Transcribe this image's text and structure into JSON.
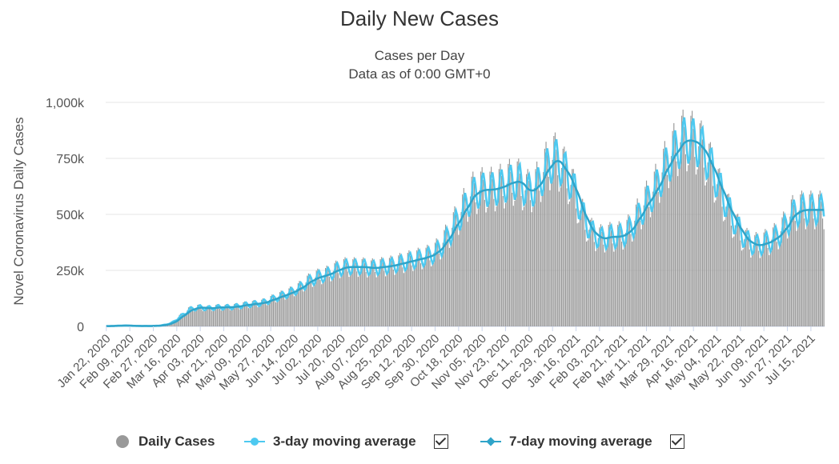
{
  "chart_data": {
    "type": "bar",
    "title": "Daily New Cases",
    "subtitle_lines": [
      "Cases per Day",
      "Data as of 0:00 GMT+0"
    ],
    "ylabel": "Novel Coronavirus Daily Cases",
    "xlabel": "",
    "ylim": [
      0,
      1000000
    ],
    "y_ticks": [
      "0",
      "250k",
      "500k",
      "750k",
      "1,000k"
    ],
    "y_tick_values": [
      0,
      250000,
      500000,
      750000,
      1000000
    ],
    "x_ticks": [
      "Jan 22, 2020",
      "Feb 09, 2020",
      "Feb 27, 2020",
      "Mar 16, 2020",
      "Apr 03, 2020",
      "Apr 21, 2020",
      "May 09, 2020",
      "May 27, 2020",
      "Jun 14, 2020",
      "Jul 02, 2020",
      "Jul 20, 2020",
      "Aug 07, 2020",
      "Aug 25, 2020",
      "Sep 12, 2020",
      "Sep 30, 2020",
      "Oct 18, 2020",
      "Nov 05, 2020",
      "Nov 23, 2020",
      "Dec 11, 2020",
      "Dec 29, 2020",
      "Jan 16, 2021",
      "Feb 03, 2021",
      "Feb 21, 2021",
      "Mar 11, 2021",
      "Mar 29, 2021",
      "Apr 16, 2021",
      "May 04, 2021",
      "May 22, 2021",
      "Jun 09, 2021",
      "Jun 27, 2021",
      "Jul 15, 2021"
    ],
    "grid": true,
    "legend_position": "bottom",
    "x_start": "2020-01-22",
    "x_end": "2021-07-25",
    "series": [
      {
        "name": "Daily Cases",
        "type": "bar",
        "color": "#999999",
        "values_weekly": [
          1000,
          3000,
          4000,
          2000,
          2000,
          2000,
          5000,
          15000,
          45000,
          75000,
          85000,
          80000,
          85000,
          85000,
          88000,
          95000,
          100000,
          105000,
          120000,
          135000,
          150000,
          170000,
          200000,
          220000,
          230000,
          250000,
          265000,
          265000,
          265000,
          260000,
          265000,
          270000,
          280000,
          290000,
          300000,
          310000,
          330000,
          380000,
          450000,
          520000,
          590000,
          610000,
          610000,
          620000,
          640000,
          650000,
          600000,
          620000,
          700000,
          750000,
          700000,
          620000,
          500000,
          420000,
          390000,
          400000,
          400000,
          420000,
          480000,
          550000,
          610000,
          700000,
          770000,
          830000,
          830000,
          800000,
          720000,
          620000,
          520000,
          440000,
          380000,
          360000,
          370000,
          390000,
          430000,
          500000,
          520000
        ]
      },
      {
        "name": "3-day moving average",
        "type": "line",
        "color": "#4DC9F0",
        "values_weekly": [
          1000,
          3000,
          4000,
          2000,
          2000,
          2000,
          5000,
          15000,
          45000,
          75000,
          85000,
          80000,
          85000,
          85000,
          88000,
          95000,
          100000,
          105000,
          120000,
          135000,
          150000,
          170000,
          200000,
          220000,
          230000,
          250000,
          265000,
          265000,
          265000,
          260000,
          265000,
          270000,
          280000,
          290000,
          300000,
          310000,
          330000,
          380000,
          450000,
          520000,
          590000,
          610000,
          610000,
          620000,
          640000,
          650000,
          600000,
          620000,
          700000,
          750000,
          700000,
          620000,
          500000,
          420000,
          390000,
          400000,
          400000,
          420000,
          480000,
          550000,
          610000,
          700000,
          770000,
          830000,
          830000,
          800000,
          720000,
          620000,
          520000,
          440000,
          380000,
          360000,
          370000,
          390000,
          430000,
          500000,
          520000
        ]
      },
      {
        "name": "7-day moving average",
        "type": "line",
        "color": "#2FA4C9",
        "values_weekly": [
          1000,
          3000,
          4000,
          2000,
          2000,
          2000,
          5000,
          15000,
          45000,
          75000,
          85000,
          80000,
          85000,
          85000,
          88000,
          95000,
          100000,
          105000,
          120000,
          135000,
          150000,
          170000,
          200000,
          220000,
          230000,
          250000,
          265000,
          265000,
          265000,
          260000,
          265000,
          270000,
          280000,
          290000,
          300000,
          310000,
          330000,
          380000,
          450000,
          520000,
          590000,
          610000,
          610000,
          620000,
          640000,
          650000,
          600000,
          620000,
          700000,
          750000,
          700000,
          620000,
          500000,
          420000,
          390000,
          400000,
          400000,
          420000,
          480000,
          550000,
          610000,
          700000,
          770000,
          830000,
          830000,
          800000,
          720000,
          620000,
          520000,
          440000,
          380000,
          360000,
          370000,
          390000,
          430000,
          500000,
          520000
        ]
      }
    ]
  },
  "legend": {
    "items": [
      {
        "label": "Daily Cases",
        "color": "#999999",
        "symbol": "circle",
        "checkbox": false
      },
      {
        "label": "3-day moving average",
        "color": "#4DC9F0",
        "symbol": "line-circle",
        "checkbox": true
      },
      {
        "label": "7-day moving average",
        "color": "#2FA4C9",
        "symbol": "line-diamond",
        "checkbox": true
      }
    ]
  }
}
